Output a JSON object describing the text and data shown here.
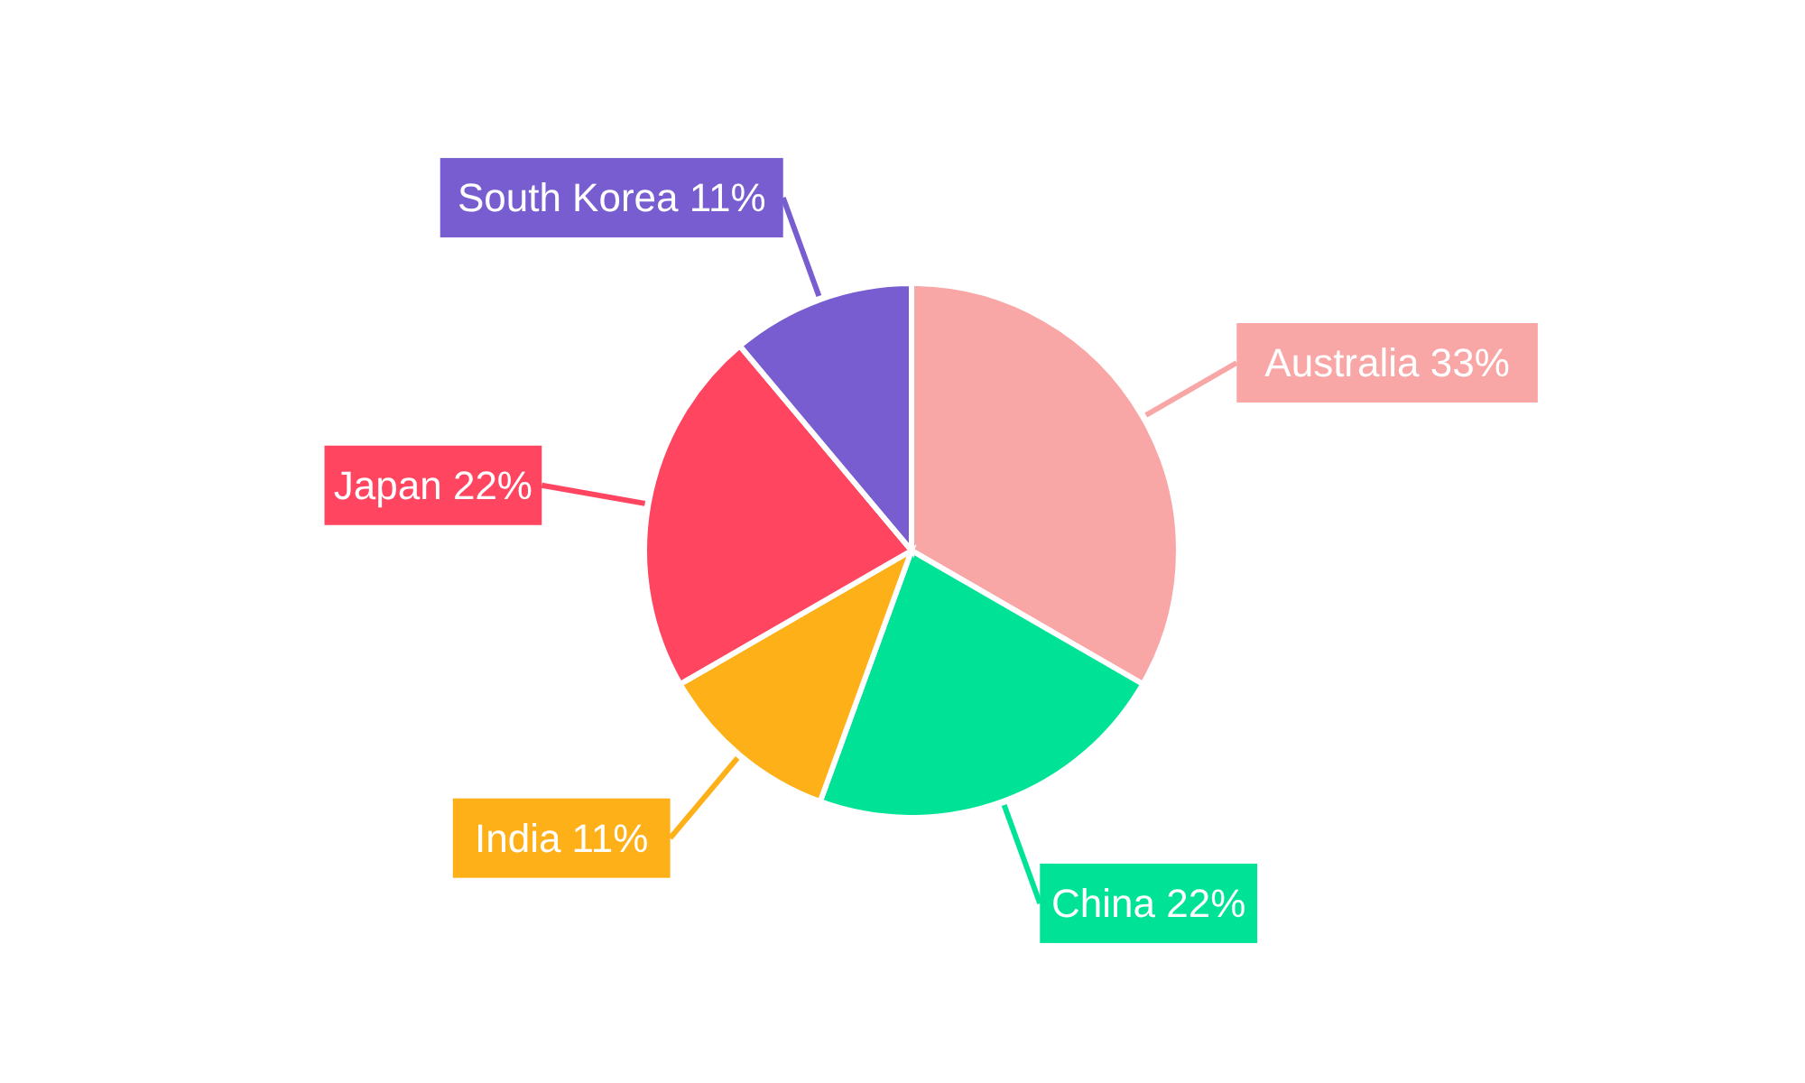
{
  "chart_data": {
    "type": "pie",
    "categories": [
      "Australia",
      "China",
      "India",
      "Japan",
      "South Korea"
    ],
    "values": [
      33,
      22,
      11,
      22,
      11
    ],
    "value_labels": [
      "33%",
      "22%",
      "11%",
      "22%",
      "11%"
    ],
    "colors": [
      "#f9a6a6",
      "#00e396",
      "#feb019",
      "#ff4560",
      "#775dd0"
    ],
    "legend": false
  }
}
